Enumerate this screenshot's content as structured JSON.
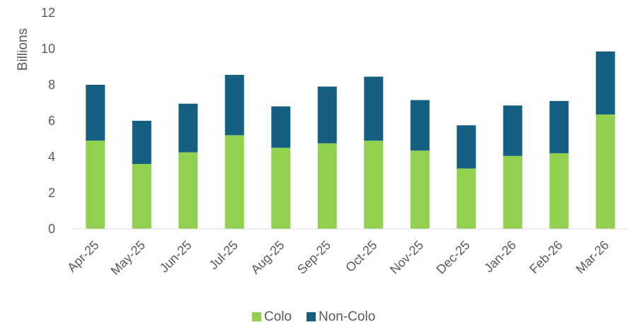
{
  "chart_data": {
    "type": "bar",
    "stacked": true,
    "title": "",
    "xlabel": "",
    "ylabel": "Billions",
    "ylim": [
      0,
      12
    ],
    "yticks": [
      "0",
      "2",
      "4",
      "6",
      "8",
      "10",
      "12"
    ],
    "grid": false,
    "legend_position": "bottom",
    "categories": [
      "Apr-25",
      "May-25",
      "Jun-25",
      "Jul-25",
      "Aug-25",
      "Sep-25",
      "Oct-25",
      "Nov-25",
      "Dec-25",
      "Jan-26",
      "Feb-26",
      "Mar-26"
    ],
    "series": [
      {
        "name": "Colo",
        "color": "#92d050",
        "values": [
          4.9,
          3.6,
          4.25,
          5.2,
          4.5,
          4.75,
          4.9,
          4.35,
          3.35,
          4.05,
          4.2,
          6.35
        ]
      },
      {
        "name": "Non-Colo",
        "color": "#156082",
        "values": [
          3.1,
          2.4,
          2.7,
          3.35,
          2.3,
          3.15,
          3.55,
          2.8,
          2.4,
          2.8,
          2.9,
          3.5
        ]
      }
    ]
  }
}
